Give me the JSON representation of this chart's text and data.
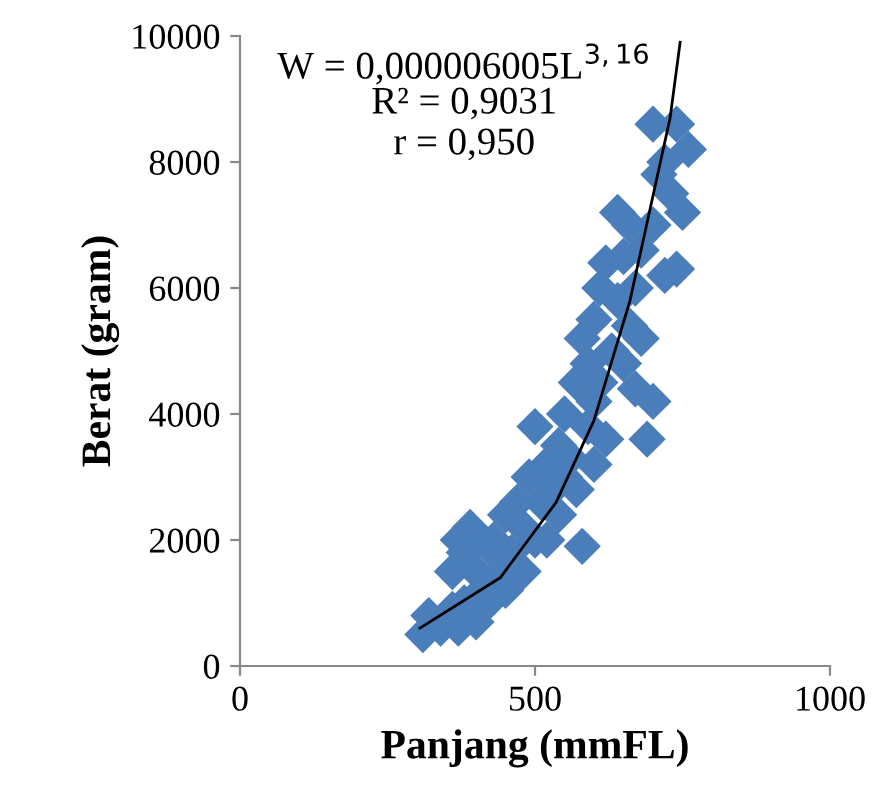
{
  "chart_data": {
    "type": "scatter",
    "xlabel": "Panjang (mmFL)",
    "ylabel": "Berat (gram)",
    "xlim": [
      0,
      1000
    ],
    "ylim": [
      0,
      10000
    ],
    "xticks": [
      0,
      500,
      1000
    ],
    "yticks": [
      0,
      2000,
      4000,
      6000,
      8000,
      10000
    ],
    "grid": false,
    "legend": false,
    "marker": "diamond",
    "annotations": [
      "W = 0,000006005L$^{3,16}$",
      "R² = 0,9031",
      "r = 0,950"
    ],
    "series": [
      {
        "color": "#4a7ebb",
        "x": [
          310,
          320,
          340,
          360,
          370,
          380,
          400,
          360,
          370,
          380,
          390,
          400,
          410,
          420,
          420,
          430,
          440,
          450,
          450,
          460,
          470,
          480,
          480,
          490,
          500,
          500,
          510,
          520,
          520,
          530,
          540,
          540,
          550,
          550,
          560,
          570,
          570,
          580,
          580,
          590,
          590,
          600,
          600,
          600,
          610,
          610,
          620,
          620,
          630,
          640,
          640,
          650,
          650,
          660,
          660,
          670,
          670,
          680,
          680,
          690,
          700,
          700,
          700,
          710,
          720,
          720,
          730,
          740,
          750,
          760,
          740
        ],
        "values": [
          500,
          800,
          600,
          900,
          600,
          1000,
          700,
          1500,
          2000,
          1800,
          2200,
          1500,
          1200,
          1900,
          1000,
          2000,
          1500,
          2400,
          1200,
          1800,
          2600,
          2200,
          1500,
          3000,
          3800,
          2000,
          2600,
          3200,
          2000,
          2800,
          3500,
          2400,
          4000,
          3000,
          3300,
          4500,
          2800,
          1900,
          5200,
          3800,
          4800,
          5500,
          4200,
          3200,
          6000,
          4500,
          6400,
          3600,
          5000,
          5800,
          7200,
          6500,
          4800,
          7000,
          5400,
          6000,
          4400,
          5200,
          6600,
          3600,
          4200,
          8600,
          7000,
          7800,
          6200,
          8000,
          7500,
          8600,
          7200,
          8200,
          6300
        ]
      },
      {
        "type": "line",
        "color": "#000000",
        "marker": "none",
        "line_style": "solid",
        "x": [
          305,
          441,
          536,
          600,
          661,
          668,
          729,
          746
        ],
        "values": [
          600,
          1400,
          2600,
          3900,
          5800,
          6100,
          8700,
          9900
        ]
      }
    ]
  }
}
